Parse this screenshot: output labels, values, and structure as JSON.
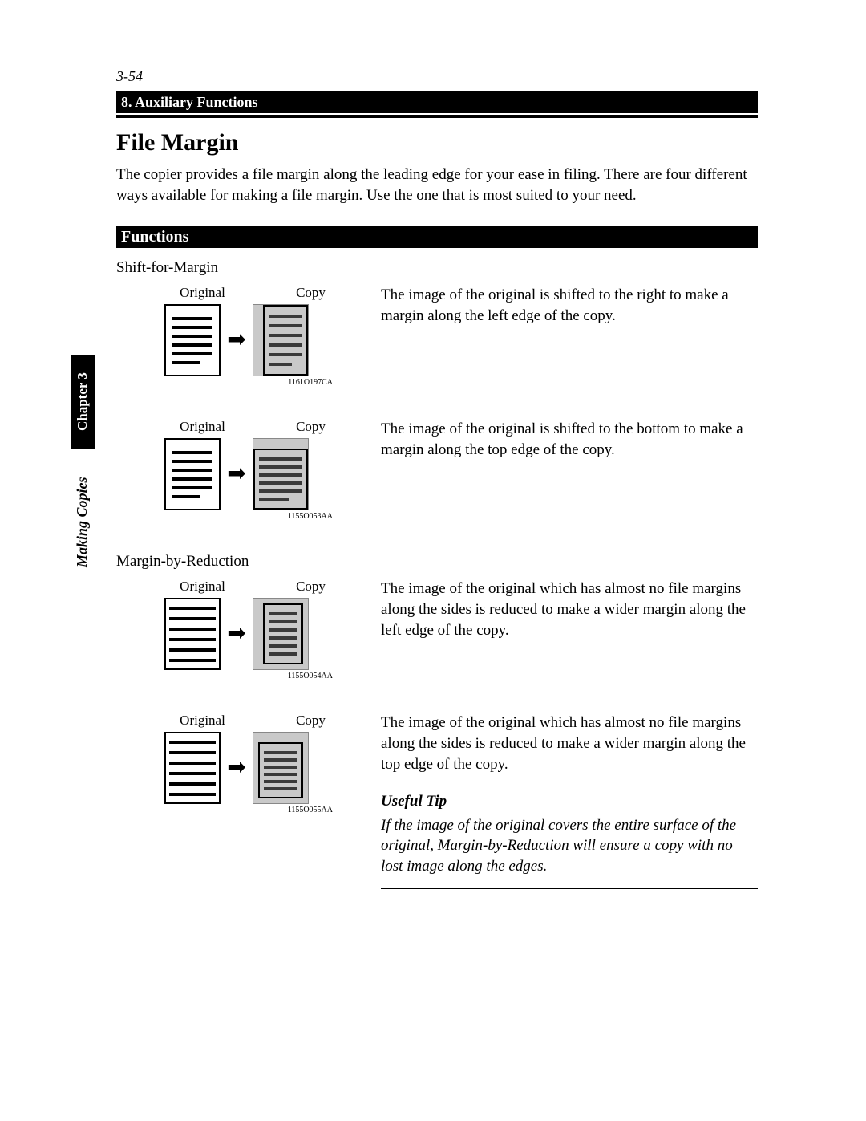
{
  "page_number": "3-54",
  "header_bar": "8. Auxiliary Functions",
  "title": "File Margin",
  "intro": "The copier provides a file margin along the leading edge for your ease in filing.  There are four different ways available for making a file margin. Use the one that is most suited to your need.",
  "functions_bar": "Functions",
  "side_tab": "Chapter 3",
  "side_caption": "Making Copies",
  "sections": [
    {
      "heading": "Shift-for-Margin",
      "rows": [
        {
          "orig_label": "Original",
          "copy_label": "Copy",
          "ref": "1161O197CA",
          "desc": "The image of the original is shifted to the right to make a margin along the left edge of the copy.",
          "margin_side": "left"
        },
        {
          "orig_label": "Original",
          "copy_label": "Copy",
          "ref": "1155O053AA",
          "desc": "The image of the original is shifted to the bottom to make a margin along the top edge of the copy.",
          "margin_side": "top"
        }
      ]
    },
    {
      "heading": "Margin-by-Reduction",
      "rows": [
        {
          "orig_label": "Original",
          "copy_label": "Copy",
          "ref": "1155O054AA",
          "desc": "The image of the original which has almost no file margins along the sides is reduced to make a wider margin along the left edge of the copy.",
          "margin_side": "left",
          "reduced": true
        },
        {
          "orig_label": "Original",
          "copy_label": "Copy",
          "ref": "1155O055AA",
          "desc": "The image of the original which has almost no file margins along the sides is reduced to make a wider margin along the top edge of the copy.",
          "margin_side": "top",
          "reduced": true
        }
      ]
    }
  ],
  "tip": {
    "title": "Useful Tip",
    "body": "If the image of the original covers the entire surface of the original, Margin-by-Reduction will ensure a copy with no lost image along the edges."
  },
  "colors": {
    "black": "#000000",
    "white": "#ffffff",
    "copy_fill": "#c9c9c9",
    "copy_border": "#888888",
    "copy_lines": "#3a3a3a"
  },
  "arrow_glyph": "➡"
}
